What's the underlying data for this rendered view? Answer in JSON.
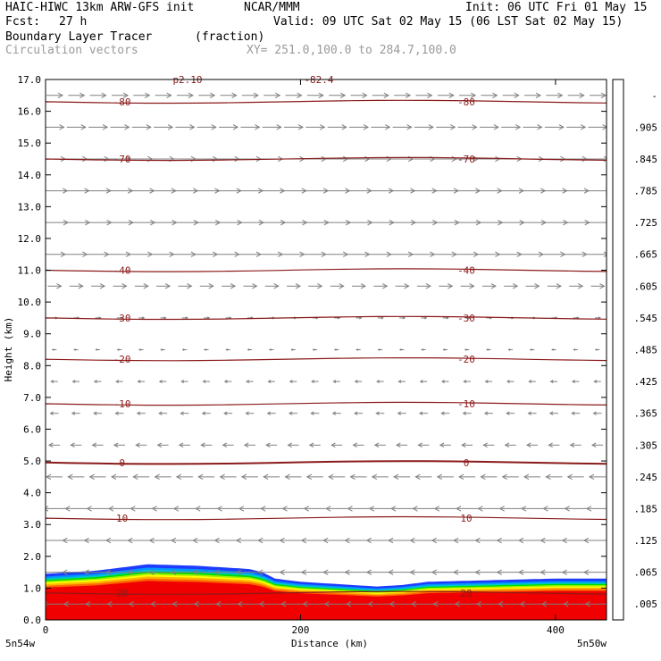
{
  "header": {
    "model_title": "HAIC-HIWC 13km ARW-GFS init",
    "org": "NCAR/MMM",
    "init": "Init: 06 UTC Fri 01 May 15",
    "fcst_label": "Fcst:",
    "fcst_value": "27 h",
    "valid": "Valid: 09 UTC Sat 02 May 15 (06 LST Sat 02 May 15)",
    "field_name": "Boundary Layer Tracer",
    "field_units": "(fraction)",
    "vector_name": "Circulation vectors",
    "xy_range": "XY= 251.0,100.0 to 284.7,100.0"
  },
  "colors": {
    "isotherm": "#8b1a1a",
    "vector": "#808080",
    "frame": "#000000"
  },
  "chart_data": {
    "type": "heatmap",
    "ylabel": "Height (km)",
    "xlabel": "Distance (km)",
    "ylim": [
      0,
      17
    ],
    "xlim": [
      0,
      440
    ],
    "y_ticks": [
      "0.0",
      "1.0",
      "2.0",
      "3.0",
      "4.0",
      "5.0",
      "6.0",
      "7.0",
      "8.0",
      "9.0",
      "10.0",
      "11.0",
      "12.0",
      "13.0",
      "14.0",
      "15.0",
      "16.0",
      "17.0"
    ],
    "x_ticks": [
      "0",
      "200",
      "400"
    ],
    "x_tick_values": [
      0,
      200,
      400
    ],
    "left_endpoint": "5n54w",
    "right_endpoint": "5n50w",
    "colorbar": {
      "labels": [
        ".005",
        ".065",
        ".125",
        ".185",
        ".245",
        ".305",
        ".365",
        ".425",
        ".485",
        ".545",
        ".605",
        ".665",
        ".725",
        ".785",
        ".845",
        ".905",
        "-"
      ],
      "colors": [
        "#ffffff",
        "#1e3cff",
        "#0096ff",
        "#00c8c8",
        "#00c864",
        "#00dc00",
        "#50f000",
        "#a0f000",
        "#d2f000",
        "#ffff00",
        "#ffdc00",
        "#ffb400",
        "#ff8c00",
        "#ff6400",
        "#ff3200",
        "#ff1400",
        "#f00000"
      ]
    },
    "tracer_top_km": {
      "x": [
        0,
        40,
        60,
        80,
        120,
        160,
        170,
        180,
        200,
        240,
        260,
        280,
        300,
        350,
        400,
        440
      ],
      "y": [
        1.45,
        1.55,
        1.65,
        1.75,
        1.7,
        1.6,
        1.5,
        1.3,
        1.2,
        1.1,
        1.05,
        1.1,
        1.2,
        1.25,
        1.3,
        1.3
      ]
    },
    "isotherms": [
      {
        "label": "-80",
        "height_km": 16.3
      },
      {
        "label": "-70",
        "height_km": 14.5
      },
      {
        "label": "-40",
        "height_km": 11.0
      },
      {
        "label": "-30",
        "height_km": 9.5
      },
      {
        "label": "-20",
        "height_km": 8.2
      },
      {
        "label": "-10",
        "height_km": 6.8
      },
      {
        "label": "0",
        "height_km": 4.95
      },
      {
        "label": "10",
        "height_km": 3.2
      },
      {
        "label": "20",
        "height_km": 0.85
      }
    ],
    "top_labels": [
      "p2.10",
      "-82.4"
    ],
    "wind_profile": {
      "height_km": [
        0.5,
        1.5,
        2.5,
        3.5,
        4.5,
        5.5,
        6.5,
        7.5,
        8.5,
        9.5,
        10.5,
        11.5,
        12.5,
        13.5,
        14.5,
        15.5,
        16.5
      ],
      "u_relative": [
        -0.9,
        -1.0,
        -1.0,
        -0.8,
        -0.6,
        -0.4,
        -0.3,
        -0.25,
        -0.15,
        0.2,
        0.5,
        0.8,
        1.0,
        0.95,
        0.8,
        0.7,
        0.6
      ]
    }
  }
}
